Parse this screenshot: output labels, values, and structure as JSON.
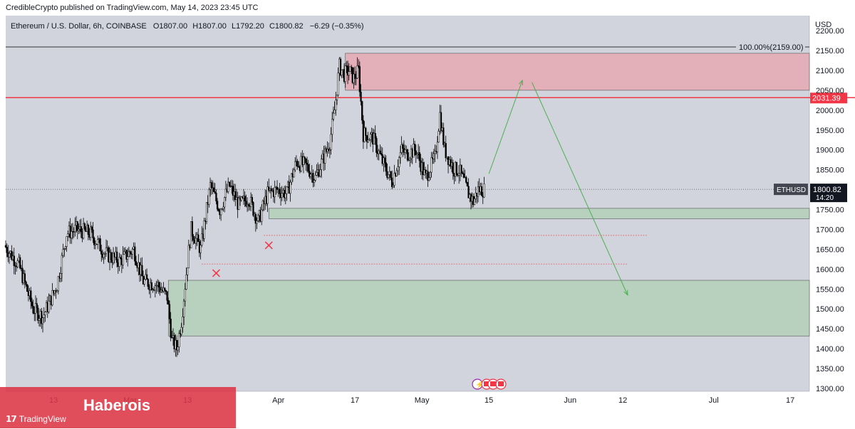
{
  "header": {
    "published_line": "CredibleCrypto published on TradingView.com, May 14, 2023 23:45 UTC",
    "symbol_desc": "Ethereum / U.S. Dollar, 6h, COINBASE",
    "ohlc": {
      "o_label": "O",
      "o": "1807.00",
      "h_label": "H",
      "h": "1807.00",
      "l_label": "L",
      "l": "1792.20",
      "c_label": "C",
      "c": "1800.82",
      "change": "−6.29 (−0.35%)"
    }
  },
  "watermark": {
    "name": "Haberois",
    "brand": "TradingView",
    "brand_icon": "tradingview-logo-icon"
  },
  "colors": {
    "up": "#089981",
    "down": "#f23645",
    "candle": "#000000",
    "resistance_zone": "#e8a3ad",
    "support_zone": "#b4cfb9",
    "red_line": "#f23645",
    "arrow": "#4caf50",
    "background": "#d1d4dc"
  },
  "chart_data": {
    "type": "candlestick",
    "symbol": "ETHUSD",
    "interval": "6h",
    "currency": "USD",
    "ylim": [
      1300,
      2200
    ],
    "y_ticks": [
      1300,
      1350,
      1400,
      1450,
      1500,
      1550,
      1600,
      1650,
      1700,
      1750,
      1800,
      1850,
      1900,
      1950,
      2000,
      2050,
      2100,
      2150,
      2200
    ],
    "y_tick_labels": [
      "1300.00",
      "1350.00",
      "1400.00",
      "1450.00",
      "1500.00",
      "1550.00",
      "1600.00",
      "1650.00",
      "1700.00",
      "1750.00",
      "1800.00",
      "1850.00",
      "1900.00",
      "1950.00",
      "2000.00",
      "2050.00",
      "2100.00",
      "2150.00",
      "2200.00"
    ],
    "x_tick_labels": [
      {
        "label": "13",
        "date": "2023-02-13"
      },
      {
        "label": "Mar",
        "date": "2023-03-01"
      },
      {
        "label": "13",
        "date": "2023-03-13"
      },
      {
        "label": "Apr",
        "date": "2023-04-01"
      },
      {
        "label": "17",
        "date": "2023-04-17"
      },
      {
        "label": "May",
        "date": "2023-05-01"
      },
      {
        "label": "15",
        "date": "2023-05-15"
      },
      {
        "label": "Jun",
        "date": "2023-06-01"
      },
      {
        "label": "12",
        "date": "2023-06-12"
      },
      {
        "label": "Jul",
        "date": "2023-07-01"
      },
      {
        "label": "17",
        "date": "2023-07-17"
      }
    ],
    "x_range": [
      "2023-02-03",
      "2023-07-21"
    ],
    "price_path": [
      [
        "2023-02-03",
        1660
      ],
      [
        "2023-02-06",
        1610
      ],
      [
        "2023-02-09",
        1500
      ],
      [
        "2023-02-11",
        1480
      ],
      [
        "2023-02-14",
        1560
      ],
      [
        "2023-02-16",
        1690
      ],
      [
        "2023-02-18",
        1700
      ],
      [
        "2023-02-21",
        1690
      ],
      [
        "2023-02-24",
        1640
      ],
      [
        "2023-02-27",
        1620
      ],
      [
        "2023-03-02",
        1650
      ],
      [
        "2023-03-04",
        1570
      ],
      [
        "2023-03-07",
        1560
      ],
      [
        "2023-03-09",
        1530
      ],
      [
        "2023-03-10",
        1420
      ],
      [
        "2023-03-11",
        1400
      ],
      [
        "2023-03-12",
        1470
      ],
      [
        "2023-03-13",
        1590
      ],
      [
        "2023-03-14",
        1700
      ],
      [
        "2023-03-16",
        1650
      ],
      [
        "2023-03-18",
        1810
      ],
      [
        "2023-03-20",
        1750
      ],
      [
        "2023-03-22",
        1810
      ],
      [
        "2023-03-24",
        1760
      ],
      [
        "2023-03-26",
        1780
      ],
      [
        "2023-03-28",
        1720
      ],
      [
        "2023-03-30",
        1790
      ],
      [
        "2023-04-01",
        1800
      ],
      [
        "2023-04-03",
        1790
      ],
      [
        "2023-04-05",
        1870
      ],
      [
        "2023-04-07",
        1860
      ],
      [
        "2023-04-09",
        1830
      ],
      [
        "2023-04-11",
        1890
      ],
      [
        "2023-04-12",
        1920
      ],
      [
        "2023-04-13",
        2000
      ],
      [
        "2023-04-14",
        2110
      ],
      [
        "2023-04-15",
        2090
      ],
      [
        "2023-04-16",
        2100
      ],
      [
        "2023-04-17",
        2080
      ],
      [
        "2023-04-18",
        2100
      ],
      [
        "2023-04-19",
        1940
      ],
      [
        "2023-04-21",
        1930
      ],
      [
        "2023-04-23",
        1870
      ],
      [
        "2023-04-25",
        1820
      ],
      [
        "2023-04-27",
        1900
      ],
      [
        "2023-04-28",
        1890
      ],
      [
        "2023-04-30",
        1900
      ],
      [
        "2023-05-02",
        1830
      ],
      [
        "2023-05-04",
        1880
      ],
      [
        "2023-05-05",
        1990
      ],
      [
        "2023-05-06",
        1900
      ],
      [
        "2023-05-08",
        1850
      ],
      [
        "2023-05-09",
        1850
      ],
      [
        "2023-05-10",
        1820
      ],
      [
        "2023-05-11",
        1790
      ],
      [
        "2023-05-12",
        1770
      ],
      [
        "2023-05-13",
        1800
      ],
      [
        "2023-05-14",
        1800
      ]
    ],
    "last_price": {
      "symbol": "ETHUSD",
      "price": 1800.82,
      "price_label": "1800.82",
      "countdown": "14:20"
    },
    "horizontal_lines": [
      {
        "price": 2159,
        "label": "100.00%(2159.00)",
        "color": "#000000"
      },
      {
        "price": 2031.39,
        "label": "2031.39",
        "color": "#f23645"
      }
    ],
    "zones": [
      {
        "type": "resistance",
        "from_date": "2023-04-15",
        "price_high": 2143,
        "price_low": 2050
      },
      {
        "type": "support",
        "from_date": "2023-03-30",
        "price_high": 1753,
        "price_low": 1727
      },
      {
        "type": "support",
        "from_date": "2023-03-09",
        "price_high": 1572,
        "price_low": 1432
      }
    ],
    "dotted_levels": [
      {
        "from_date": "2023-03-29",
        "to_date": "2023-06-17",
        "price": 1685
      },
      {
        "from_date": "2023-03-16",
        "to_date": "2023-06-13",
        "price": 1613
      }
    ],
    "x_marks": [
      {
        "date": "2023-03-30",
        "price": 1660
      },
      {
        "date": "2023-03-19",
        "price": 1590
      }
    ],
    "projection": [
      {
        "date": "2023-05-15",
        "price": 1840
      },
      {
        "date": "2023-05-22",
        "price": 2075
      },
      {
        "date": "2023-05-24",
        "price": 2070
      },
      {
        "date": "2023-06-13",
        "price": 1535
      }
    ]
  }
}
